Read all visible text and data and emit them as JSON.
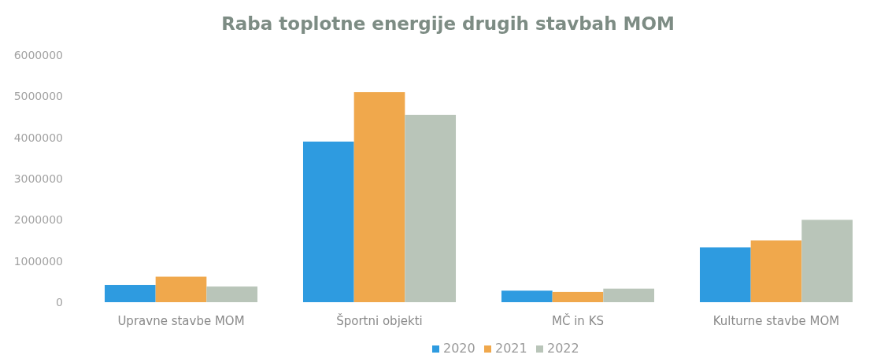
{
  "chart_data": {
    "type": "bar",
    "title": "Raba toplotne energije drugih stavbah MOM",
    "categories": [
      "Upravne stavbe MOM",
      "Športni objekti",
      "MČ in KS",
      "Kulturne stavbe MOM"
    ],
    "series": [
      {
        "name": "2020",
        "color": "#2e9be0",
        "values": [
          420000,
          3900000,
          280000,
          1330000
        ]
      },
      {
        "name": "2021",
        "color": "#f0a84c",
        "values": [
          620000,
          5100000,
          250000,
          1500000
        ]
      },
      {
        "name": "2022",
        "color": "#b9c5b9",
        "values": [
          380000,
          4550000,
          330000,
          2000000
        ]
      }
    ],
    "ylim": [
      0,
      6000000
    ],
    "yticks": [
      0,
      1000000,
      2000000,
      3000000,
      4000000,
      5000000,
      6000000
    ],
    "grid": false,
    "legend": "bottom"
  }
}
